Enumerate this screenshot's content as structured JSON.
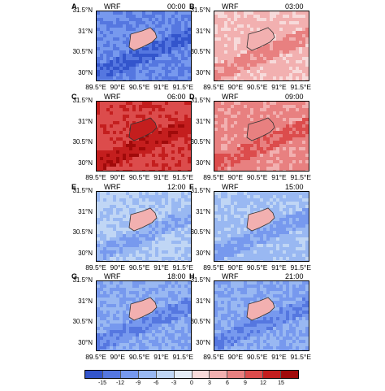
{
  "chart_data": [
    {
      "type": "heatmap",
      "panel": "A",
      "model": "WRF",
      "time": "00:00",
      "level": -12
    },
    {
      "type": "heatmap",
      "panel": "B",
      "model": "WRF",
      "time": "03:00",
      "level": 4
    },
    {
      "type": "heatmap",
      "panel": "C",
      "model": "WRF",
      "time": "06:00",
      "level": 11
    },
    {
      "type": "heatmap",
      "panel": "D",
      "model": "WRF",
      "time": "09:00",
      "level": 7
    },
    {
      "type": "heatmap",
      "panel": "E",
      "model": "WRF",
      "time": "12:00",
      "level": -6
    },
    {
      "type": "heatmap",
      "panel": "F",
      "model": "WRF",
      "time": "15:00",
      "level": -7
    },
    {
      "type": "heatmap",
      "panel": "G",
      "model": "WRF",
      "time": "18:00",
      "level": -9
    },
    {
      "type": "heatmap",
      "panel": "H",
      "model": "WRF",
      "time": "21:00",
      "level": -9
    }
  ],
  "axes": {
    "y_ticks": [
      "31.5°N",
      "31°N",
      "30.5°N",
      "30°N"
    ],
    "x_ticks": [
      "89.5°E",
      "90°E",
      "90.5°E",
      "91°E",
      "91.5°E"
    ],
    "lat_range": [
      29.8,
      31.5
    ],
    "lon_range": [
      89.5,
      91.7
    ]
  },
  "colorbar": {
    "ticks": [
      "-15",
      "-12",
      "-9",
      "-6",
      "-3",
      "0",
      "3",
      "6",
      "9",
      "12",
      "15"
    ],
    "colors": [
      "#3355cc",
      "#5577e0",
      "#7799ee",
      "#99b8f2",
      "#c0d6f5",
      "#e4ecf6",
      "#f7dada",
      "#f2b0b0",
      "#e88080",
      "#dc4c4c",
      "#c41e1e",
      "#a00a0a"
    ]
  }
}
